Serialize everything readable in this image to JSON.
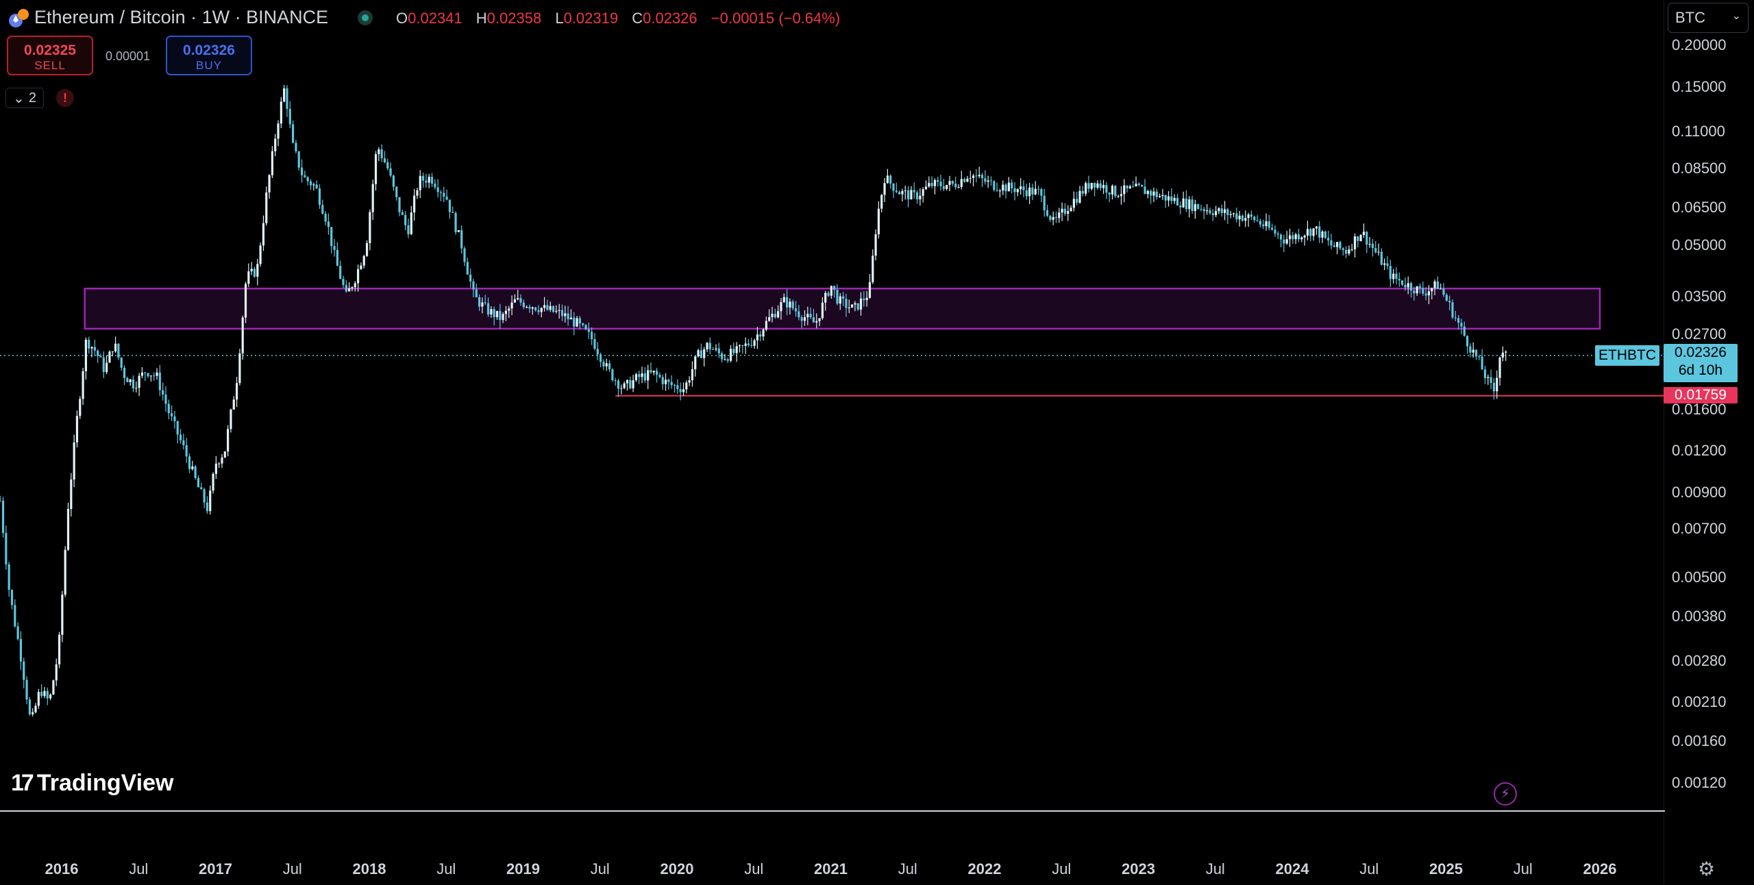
{
  "header": {
    "symbol_title": "Ethereum / Bitcoin · 1W · BINANCE",
    "ohlc": {
      "o_label": "O",
      "o": "0.02341",
      "h_label": "H",
      "h": "0.02358",
      "l_label": "L",
      "l": "0.02319",
      "c_label": "C",
      "c": "0.02326",
      "change": "−0.00015 (−0.64%)"
    },
    "colors": {
      "down": "#f23645",
      "status": "#26a69a"
    }
  },
  "trade": {
    "sell_price": "0.02325",
    "sell_label": "SELL",
    "spread": "0.00001",
    "buy_price": "0.02326",
    "buy_label": "BUY"
  },
  "indicators": {
    "count": "2",
    "warning": "!"
  },
  "currency_select": {
    "value": "BTC"
  },
  "price_axis": {
    "ticks": [
      "0.20000",
      "0.15000",
      "0.11000",
      "0.08500",
      "0.06500",
      "0.05000",
      "0.03500",
      "0.02700",
      "0.01600",
      "0.01200",
      "0.00900",
      "0.00700",
      "0.00500",
      "0.00380",
      "0.00280",
      "0.00210",
      "0.00160",
      "0.00120"
    ]
  },
  "time_axis": {
    "labels": [
      {
        "text": "2016",
        "year": true
      },
      {
        "text": "Jul",
        "year": false
      },
      {
        "text": "2017",
        "year": true
      },
      {
        "text": "Jul",
        "year": false
      },
      {
        "text": "2018",
        "year": true
      },
      {
        "text": "Jul",
        "year": false
      },
      {
        "text": "2019",
        "year": true
      },
      {
        "text": "Jul",
        "year": false
      },
      {
        "text": "2020",
        "year": true
      },
      {
        "text": "Jul",
        "year": false
      },
      {
        "text": "2021",
        "year": true
      },
      {
        "text": "Jul",
        "year": false
      },
      {
        "text": "2022",
        "year": true
      },
      {
        "text": "Jul",
        "year": false
      },
      {
        "text": "2023",
        "year": true
      },
      {
        "text": "Jul",
        "year": false
      },
      {
        "text": "2024",
        "year": true
      },
      {
        "text": "Jul",
        "year": false
      },
      {
        "text": "2025",
        "year": true
      },
      {
        "text": "Jul",
        "year": false
      },
      {
        "text": "2026",
        "year": true
      }
    ]
  },
  "price_tags": {
    "symbol": "ETHBTC",
    "last_price": "0.02326",
    "countdown": "6d 10h",
    "low_line": "0.01759",
    "colors": {
      "last": "#5cc6de",
      "low": "#e8355c"
    }
  },
  "brand": {
    "name": "TradingView"
  },
  "chart_data": {
    "type": "candlestick",
    "symbol": "ETHBTC",
    "interval": "1W",
    "scale": "log",
    "ylim": [
      0.0012,
      0.2
    ],
    "candle_color": "#5cc6de",
    "series_path": [
      {
        "t": 2015.6,
        "v": 0.0085
      },
      {
        "t": 2015.66,
        "v": 0.0045
      },
      {
        "t": 2015.74,
        "v": 0.0028
      },
      {
        "t": 2015.8,
        "v": 0.0018
      },
      {
        "t": 2015.86,
        "v": 0.0023
      },
      {
        "t": 2015.92,
        "v": 0.0021
      },
      {
        "t": 2015.98,
        "v": 0.003
      },
      {
        "t": 2016.04,
        "v": 0.008
      },
      {
        "t": 2016.1,
        "v": 0.015
      },
      {
        "t": 2016.16,
        "v": 0.026
      },
      {
        "t": 2016.22,
        "v": 0.024
      },
      {
        "t": 2016.28,
        "v": 0.021
      },
      {
        "t": 2016.34,
        "v": 0.0255
      },
      {
        "t": 2016.4,
        "v": 0.0205
      },
      {
        "t": 2016.47,
        "v": 0.019
      },
      {
        "t": 2016.55,
        "v": 0.021
      },
      {
        "t": 2016.62,
        "v": 0.02
      },
      {
        "t": 2016.7,
        "v": 0.0155
      },
      {
        "t": 2016.8,
        "v": 0.012
      },
      {
        "t": 2016.88,
        "v": 0.0095
      },
      {
        "t": 2016.95,
        "v": 0.008
      },
      {
        "t": 2017.0,
        "v": 0.011
      },
      {
        "t": 2017.06,
        "v": 0.012
      },
      {
        "t": 2017.14,
        "v": 0.02
      },
      {
        "t": 2017.2,
        "v": 0.04
      },
      {
        "t": 2017.27,
        "v": 0.042
      },
      {
        "t": 2017.33,
        "v": 0.07
      },
      {
        "t": 2017.4,
        "v": 0.115
      },
      {
        "t": 2017.45,
        "v": 0.15
      },
      {
        "t": 2017.5,
        "v": 0.1
      },
      {
        "t": 2017.57,
        "v": 0.08
      },
      {
        "t": 2017.65,
        "v": 0.075
      },
      {
        "t": 2017.72,
        "v": 0.06
      },
      {
        "t": 2017.78,
        "v": 0.045
      },
      {
        "t": 2017.85,
        "v": 0.035
      },
      {
        "t": 2017.91,
        "v": 0.04
      },
      {
        "t": 2017.98,
        "v": 0.05
      },
      {
        "t": 2018.05,
        "v": 0.1
      },
      {
        "t": 2018.12,
        "v": 0.085
      },
      {
        "t": 2018.19,
        "v": 0.065
      },
      {
        "t": 2018.25,
        "v": 0.055
      },
      {
        "t": 2018.32,
        "v": 0.078
      },
      {
        "t": 2018.4,
        "v": 0.08
      },
      {
        "t": 2018.5,
        "v": 0.07
      },
      {
        "t": 2018.6,
        "v": 0.05
      },
      {
        "t": 2018.68,
        "v": 0.035
      },
      {
        "t": 2018.76,
        "v": 0.032
      },
      {
        "t": 2018.86,
        "v": 0.03
      },
      {
        "t": 2018.95,
        "v": 0.034
      },
      {
        "t": 2019.05,
        "v": 0.033
      },
      {
        "t": 2019.15,
        "v": 0.032
      },
      {
        "t": 2019.25,
        "v": 0.031
      },
      {
        "t": 2019.35,
        "v": 0.029
      },
      {
        "t": 2019.45,
        "v": 0.026
      },
      {
        "t": 2019.55,
        "v": 0.021
      },
      {
        "t": 2019.65,
        "v": 0.0185
      },
      {
        "t": 2019.75,
        "v": 0.02
      },
      {
        "t": 2019.85,
        "v": 0.0205
      },
      {
        "t": 2019.95,
        "v": 0.019
      },
      {
        "t": 2020.05,
        "v": 0.0185
      },
      {
        "t": 2020.13,
        "v": 0.023
      },
      {
        "t": 2020.2,
        "v": 0.025
      },
      {
        "t": 2020.3,
        "v": 0.023
      },
      {
        "t": 2020.4,
        "v": 0.024
      },
      {
        "t": 2020.5,
        "v": 0.026
      },
      {
        "t": 2020.6,
        "v": 0.03
      },
      {
        "t": 2020.7,
        "v": 0.034
      },
      {
        "t": 2020.8,
        "v": 0.031
      },
      {
        "t": 2020.9,
        "v": 0.029
      },
      {
        "t": 2021.0,
        "v": 0.038
      },
      {
        "t": 2021.05,
        "v": 0.034
      },
      {
        "t": 2021.15,
        "v": 0.032
      },
      {
        "t": 2021.25,
        "v": 0.036
      },
      {
        "t": 2021.3,
        "v": 0.06
      },
      {
        "t": 2021.35,
        "v": 0.08
      },
      {
        "t": 2021.45,
        "v": 0.072
      },
      {
        "t": 2021.55,
        "v": 0.07
      },
      {
        "t": 2021.65,
        "v": 0.076
      },
      {
        "t": 2021.8,
        "v": 0.076
      },
      {
        "t": 2021.9,
        "v": 0.082
      },
      {
        "t": 2022.05,
        "v": 0.076
      },
      {
        "t": 2022.2,
        "v": 0.074
      },
      {
        "t": 2022.35,
        "v": 0.072
      },
      {
        "t": 2022.45,
        "v": 0.058
      },
      {
        "t": 2022.55,
        "v": 0.066
      },
      {
        "t": 2022.7,
        "v": 0.078
      },
      {
        "t": 2022.85,
        "v": 0.072
      },
      {
        "t": 2023.0,
        "v": 0.074
      },
      {
        "t": 2023.15,
        "v": 0.07
      },
      {
        "t": 2023.3,
        "v": 0.067
      },
      {
        "t": 2023.45,
        "v": 0.064
      },
      {
        "t": 2023.6,
        "v": 0.062
      },
      {
        "t": 2023.75,
        "v": 0.06
      },
      {
        "t": 2023.85,
        "v": 0.056
      },
      {
        "t": 2023.95,
        "v": 0.052
      },
      {
        "t": 2024.05,
        "v": 0.054
      },
      {
        "t": 2024.15,
        "v": 0.056
      },
      {
        "t": 2024.25,
        "v": 0.05
      },
      {
        "t": 2024.35,
        "v": 0.048
      },
      {
        "t": 2024.45,
        "v": 0.055
      },
      {
        "t": 2024.55,
        "v": 0.047
      },
      {
        "t": 2024.65,
        "v": 0.04
      },
      {
        "t": 2024.75,
        "v": 0.038
      },
      {
        "t": 2024.85,
        "v": 0.036
      },
      {
        "t": 2024.95,
        "v": 0.038
      },
      {
        "t": 2025.02,
        "v": 0.033
      },
      {
        "t": 2025.08,
        "v": 0.029
      },
      {
        "t": 2025.15,
        "v": 0.025
      },
      {
        "t": 2025.22,
        "v": 0.022
      },
      {
        "t": 2025.28,
        "v": 0.019
      },
      {
        "t": 2025.32,
        "v": 0.018
      },
      {
        "t": 2025.34,
        "v": 0.023
      },
      {
        "t": 2025.37,
        "v": 0.024
      },
      {
        "t": 2025.39,
        "v": 0.0233
      }
    ],
    "overlays": {
      "zone": {
        "from": 2016.15,
        "to": 2026.0,
        "y_low": 0.028,
        "y_high": 0.037,
        "color": "#9c27b0"
      },
      "support_line": {
        "from": 2019.6,
        "to": 2026.5,
        "y": 0.01759,
        "color": "#e8355c"
      },
      "last_price_line": {
        "y": 0.02326,
        "color": "#5cc6de"
      }
    }
  }
}
